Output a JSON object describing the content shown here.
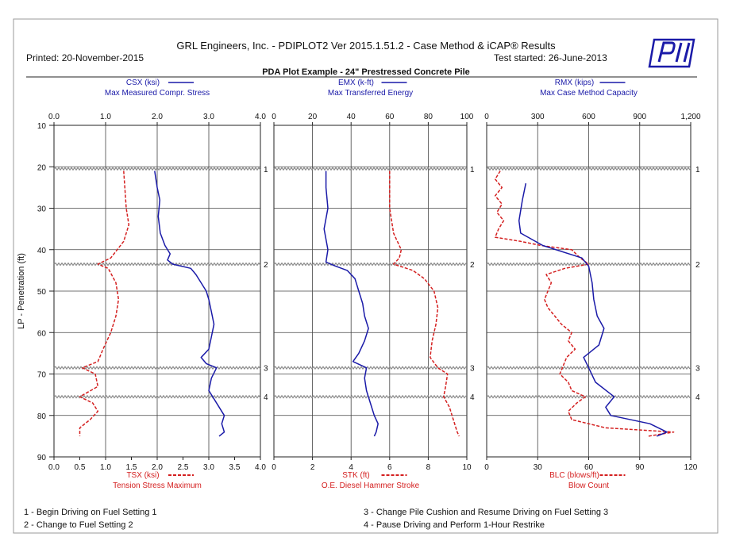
{
  "header": {
    "title": "GRL Engineers, Inc. - PDIPLOT2 Ver 2015.1.51.2 - Case Method & iCAP® Results",
    "printed": "Printed: 20-November-2015",
    "test_started": "Test started: 26-June-2013",
    "subtitle": "PDA Plot Example - 24\" Prestressed Concrete Pile",
    "logo_text": "PDI"
  },
  "notes": [
    "1 - Begin Driving on Fuel Setting 1",
    "2 - Change to Fuel Setting 2",
    "3 - Change Pile Cushion and Resume Driving on Fuel Setting 3",
    "4 - Pause Driving and Perform 1-Hour Restrike"
  ],
  "colors": {
    "blue": "#1a1aa8",
    "red": "#d42020",
    "grid": "#444444",
    "event": "#8c8c8c"
  },
  "chart_data": {
    "type": "line",
    "y_axis": {
      "label": "LP - Penetration (ft)",
      "range": [
        10,
        90
      ],
      "ticks": [
        10,
        20,
        30,
        40,
        50,
        60,
        70,
        80,
        90
      ]
    },
    "events": [
      {
        "depth": 20.5,
        "label": "1"
      },
      {
        "depth": 43.5,
        "label": "2"
      },
      {
        "depth": 68.5,
        "label": "3"
      },
      {
        "depth": 75.5,
        "label": "4"
      }
    ],
    "panels": [
      {
        "top_series": {
          "name": "CSX (ksi)",
          "desc": "Max Measured Compr. Stress",
          "range": [
            0,
            4
          ],
          "ticks": [
            "0.0",
            "1.0",
            "2.0",
            "3.0",
            "4.0"
          ],
          "color": "#1a1aa8",
          "style": "solid"
        },
        "bottom_series": {
          "name": "TSX (ksi)",
          "desc": "Tension Stress Maximum",
          "range": [
            0,
            4
          ],
          "ticks": [
            "0.0",
            "0.5",
            "1.0",
            "1.5",
            "2.0",
            "2.5",
            "3.0",
            "3.5",
            "4.0"
          ],
          "color": "#d42020",
          "style": "dashed"
        },
        "top_data": [
          [
            1.95,
            21
          ],
          [
            2.0,
            25
          ],
          [
            2.05,
            28
          ],
          [
            2.02,
            32
          ],
          [
            2.06,
            36
          ],
          [
            2.15,
            39
          ],
          [
            2.25,
            41
          ],
          [
            2.2,
            42.5
          ],
          [
            2.3,
            43.5
          ],
          [
            2.65,
            44.5
          ],
          [
            2.75,
            46
          ],
          [
            2.85,
            48
          ],
          [
            2.95,
            50
          ],
          [
            3.0,
            52
          ],
          [
            3.05,
            55
          ],
          [
            3.1,
            58
          ],
          [
            3.05,
            61
          ],
          [
            3.0,
            64
          ],
          [
            2.85,
            66
          ],
          [
            2.95,
            67.5
          ],
          [
            3.15,
            68.5
          ],
          [
            3.05,
            71
          ],
          [
            3.0,
            74
          ],
          [
            3.1,
            76
          ],
          [
            3.2,
            78
          ],
          [
            3.3,
            80
          ],
          [
            3.25,
            82
          ],
          [
            3.3,
            84
          ],
          [
            3.2,
            85
          ]
        ],
        "bottom_data": [
          [
            1.35,
            21
          ],
          [
            1.4,
            30
          ],
          [
            1.45,
            34
          ],
          [
            1.35,
            38
          ],
          [
            1.1,
            42
          ],
          [
            0.85,
            43.5
          ],
          [
            1.05,
            44.5
          ],
          [
            1.2,
            48
          ],
          [
            1.25,
            52
          ],
          [
            1.2,
            56
          ],
          [
            1.1,
            60
          ],
          [
            0.95,
            64
          ],
          [
            0.85,
            67
          ],
          [
            0.55,
            68.5
          ],
          [
            0.8,
            70
          ],
          [
            0.85,
            73
          ],
          [
            0.5,
            75.5
          ],
          [
            0.75,
            77
          ],
          [
            0.85,
            79
          ],
          [
            0.7,
            81
          ],
          [
            0.5,
            83
          ],
          [
            0.5,
            85
          ]
        ]
      },
      {
        "top_series": {
          "name": "EMX (k-ft)",
          "desc": "Max Transferred Energy",
          "range": [
            0,
            100
          ],
          "ticks": [
            "0",
            "20",
            "40",
            "60",
            "80",
            "100"
          ],
          "color": "#1a1aa8",
          "style": "solid"
        },
        "bottom_series": {
          "name": "STK (ft)",
          "desc": "O.E. Diesel Hammer Stroke",
          "range": [
            0,
            10
          ],
          "ticks": [
            "0",
            "2",
            "4",
            "6",
            "8",
            "10"
          ],
          "color": "#d42020",
          "style": "dashed"
        },
        "top_data": [
          [
            27,
            21
          ],
          [
            27,
            25
          ],
          [
            28,
            30
          ],
          [
            26,
            35
          ],
          [
            28,
            40
          ],
          [
            27,
            43
          ],
          [
            32,
            44
          ],
          [
            38,
            45
          ],
          [
            42,
            47
          ],
          [
            44,
            50
          ],
          [
            46,
            53
          ],
          [
            47,
            56
          ],
          [
            49,
            59
          ],
          [
            47,
            62
          ],
          [
            44,
            65
          ],
          [
            41,
            67
          ],
          [
            48,
            68.5
          ],
          [
            47,
            71
          ],
          [
            48,
            74
          ],
          [
            50,
            77
          ],
          [
            52,
            80
          ],
          [
            54,
            82
          ],
          [
            53,
            84
          ],
          [
            52,
            85
          ]
        ],
        "bottom_data": [
          [
            6.0,
            21
          ],
          [
            6.0,
            30
          ],
          [
            6.2,
            36
          ],
          [
            6.6,
            40
          ],
          [
            6.5,
            42
          ],
          [
            6.2,
            43.5
          ],
          [
            7.2,
            45
          ],
          [
            7.8,
            47
          ],
          [
            8.3,
            50
          ],
          [
            8.5,
            54
          ],
          [
            8.4,
            58
          ],
          [
            8.2,
            62
          ],
          [
            8.1,
            66
          ],
          [
            8.5,
            68.5
          ],
          [
            9.0,
            70
          ],
          [
            8.9,
            73
          ],
          [
            8.8,
            75.5
          ],
          [
            9.1,
            78
          ],
          [
            9.3,
            81
          ],
          [
            9.5,
            84
          ],
          [
            9.6,
            85
          ]
        ]
      },
      {
        "top_series": {
          "name": "RMX (kips)",
          "desc": "Max Case Method Capacity",
          "range": [
            0,
            1200
          ],
          "ticks": [
            "0",
            "300",
            "600",
            "900",
            "1,200"
          ],
          "color": "#1a1aa8",
          "style": "solid"
        },
        "bottom_series": {
          "name": "BLC (blows/ft)",
          "desc": "Blow Count",
          "range": [
            0,
            120
          ],
          "ticks": [
            "0",
            "30",
            "60",
            "90",
            "120"
          ],
          "color": "#d42020",
          "style": "dashed"
        },
        "top_data": [
          [
            230,
            24
          ],
          [
            210,
            28
          ],
          [
            190,
            33
          ],
          [
            200,
            36
          ],
          [
            330,
            39
          ],
          [
            560,
            42
          ],
          [
            600,
            44
          ],
          [
            620,
            48
          ],
          [
            630,
            52
          ],
          [
            650,
            56
          ],
          [
            690,
            59
          ],
          [
            660,
            63
          ],
          [
            570,
            66
          ],
          [
            600,
            68.5
          ],
          [
            640,
            72
          ],
          [
            750,
            75.5
          ],
          [
            700,
            78
          ],
          [
            730,
            80
          ],
          [
            960,
            82
          ],
          [
            1060,
            84
          ],
          [
            1000,
            85
          ]
        ],
        "bottom_data": [
          [
            8,
            21
          ],
          [
            5,
            23
          ],
          [
            9,
            25
          ],
          [
            5,
            27
          ],
          [
            9,
            29
          ],
          [
            6,
            31
          ],
          [
            10,
            33
          ],
          [
            7,
            35
          ],
          [
            5,
            37
          ],
          [
            20,
            38
          ],
          [
            32,
            39
          ],
          [
            50,
            40
          ],
          [
            55,
            42
          ],
          [
            60,
            43.5
          ],
          [
            46,
            44.5
          ],
          [
            35,
            46
          ],
          [
            38,
            48
          ],
          [
            36,
            50
          ],
          [
            34,
            52
          ],
          [
            36,
            54
          ],
          [
            40,
            56
          ],
          [
            44,
            58
          ],
          [
            50,
            60
          ],
          [
            48,
            62
          ],
          [
            52,
            64
          ],
          [
            47,
            66
          ],
          [
            45,
            68
          ],
          [
            43,
            70
          ],
          [
            48,
            72
          ],
          [
            50,
            74
          ],
          [
            58,
            75.5
          ],
          [
            53,
            77
          ],
          [
            48,
            79
          ],
          [
            50,
            81
          ],
          [
            70,
            83
          ],
          [
            110,
            84
          ],
          [
            95,
            85
          ]
        ]
      }
    ]
  }
}
